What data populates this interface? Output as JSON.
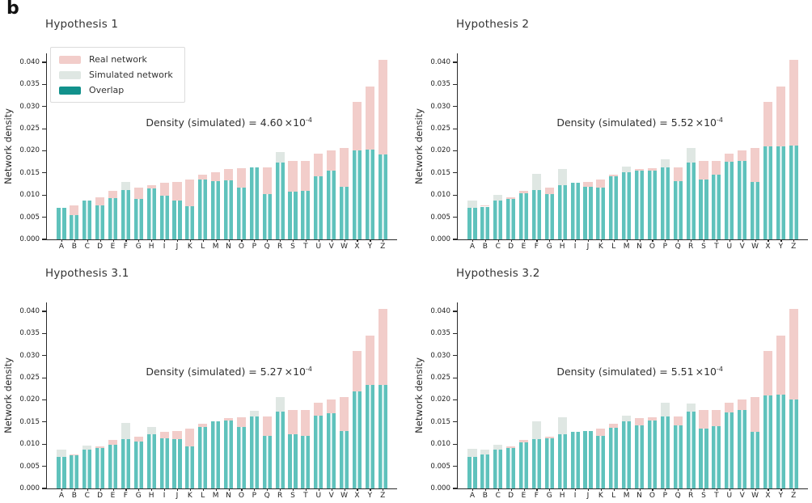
{
  "figure_label": "b",
  "colors": {
    "real": "#f2cdca",
    "simulated": "#dfe7e3",
    "overlap_bar": "#5fc2bc",
    "overlap_legend": "#12918c",
    "axis": "#2a2a2a"
  },
  "legend": {
    "items": [
      {
        "label": "Real network",
        "color": "#f2cdca"
      },
      {
        "label": "Simulated network",
        "color": "#dfe7e3"
      },
      {
        "label": "Overlap",
        "color": "#12918c"
      }
    ]
  },
  "chart_data": [
    {
      "type": "bar",
      "title": "Hypothesis 1",
      "ylabel": "Network density",
      "xlabel": "",
      "ylim": [
        0,
        0.042
      ],
      "yticks": [
        "0.000",
        "0.005",
        "0.010",
        "0.015",
        "0.020",
        "0.025",
        "0.030",
        "0.035",
        "0.040"
      ],
      "legend_position": "upper left",
      "categories": [
        "A",
        "B",
        "C",
        "D",
        "E",
        "F",
        "G",
        "H",
        "I",
        "J",
        "K",
        "L",
        "M",
        "N",
        "O",
        "P",
        "Q",
        "R",
        "S",
        "T",
        "U",
        "V",
        "W",
        "X",
        "Y",
        "Z"
      ],
      "annotation": {
        "prefix": "Density (simulated) = ",
        "mantissa": "4.60",
        "base": "×10",
        "exponent": "-4"
      },
      "series": [
        {
          "name": "Real network",
          "values": [
            0.0071,
            0.0077,
            0.0088,
            0.0095,
            0.011,
            0.0112,
            0.0117,
            0.0122,
            0.0128,
            0.013,
            0.0135,
            0.0146,
            0.0152,
            0.0158,
            0.016,
            0.0163,
            0.0163,
            0.0173,
            0.0177,
            0.0178,
            0.0194,
            0.02,
            0.0207,
            0.031,
            0.0346,
            0.0405
          ]
        },
        {
          "name": "Simulated network",
          "values": [
            0.0071,
            0.0055,
            0.0087,
            0.0076,
            0.0094,
            0.013,
            0.0092,
            0.0115,
            0.0099,
            0.0088,
            0.0075,
            0.0135,
            0.0132,
            0.0134,
            0.0117,
            0.0163,
            0.0103,
            0.0198,
            0.0107,
            0.0109,
            0.0143,
            0.0155,
            0.0119,
            0.0201,
            0.0203,
            0.0192
          ]
        },
        {
          "name": "Overlap",
          "values": [
            0.0071,
            0.0055,
            0.0087,
            0.0076,
            0.0094,
            0.0112,
            0.0092,
            0.0115,
            0.0099,
            0.0088,
            0.0075,
            0.0135,
            0.0132,
            0.0134,
            0.0117,
            0.0163,
            0.0103,
            0.0173,
            0.0107,
            0.0109,
            0.0143,
            0.0155,
            0.0119,
            0.0201,
            0.0203,
            0.0192
          ]
        }
      ]
    },
    {
      "type": "bar",
      "title": "Hypothesis 2",
      "ylabel": "Network density",
      "xlabel": "",
      "ylim": [
        0,
        0.042
      ],
      "yticks": [
        "0.000",
        "0.005",
        "0.010",
        "0.015",
        "0.020",
        "0.025",
        "0.030",
        "0.035",
        "0.040"
      ],
      "categories": [
        "A",
        "B",
        "C",
        "D",
        "E",
        "F",
        "G",
        "H",
        "I",
        "J",
        "K",
        "L",
        "M",
        "N",
        "O",
        "P",
        "Q",
        "R",
        "S",
        "T",
        "U",
        "V",
        "W",
        "X",
        "Y",
        "Z"
      ],
      "annotation": {
        "prefix": "Density (simulated) = ",
        "mantissa": "5.52",
        "base": "×10",
        "exponent": "-4"
      },
      "series": [
        {
          "name": "Real network",
          "values": [
            0.0071,
            0.0077,
            0.0088,
            0.0095,
            0.011,
            0.0112,
            0.0117,
            0.0122,
            0.0128,
            0.013,
            0.0135,
            0.0146,
            0.0152,
            0.0158,
            0.016,
            0.0163,
            0.0163,
            0.0173,
            0.0177,
            0.0178,
            0.0194,
            0.02,
            0.0207,
            0.031,
            0.0346,
            0.0405
          ]
        },
        {
          "name": "Simulated network",
          "values": [
            0.0087,
            0.0074,
            0.01,
            0.0092,
            0.0105,
            0.0148,
            0.0103,
            0.0158,
            0.0128,
            0.0119,
            0.0117,
            0.0143,
            0.0165,
            0.0155,
            0.0156,
            0.0181,
            0.0131,
            0.0206,
            0.0135,
            0.0146,
            0.0176,
            0.0177,
            0.013,
            0.021,
            0.021,
            0.0212
          ]
        },
        {
          "name": "Overlap",
          "values": [
            0.0071,
            0.0074,
            0.0088,
            0.0092,
            0.0105,
            0.0112,
            0.0103,
            0.0122,
            0.0128,
            0.0119,
            0.0117,
            0.0143,
            0.0152,
            0.0155,
            0.0156,
            0.0163,
            0.0131,
            0.0173,
            0.0135,
            0.0146,
            0.0176,
            0.0177,
            0.013,
            0.021,
            0.021,
            0.0212
          ]
        }
      ]
    },
    {
      "type": "bar",
      "title": "Hypothesis 3.1",
      "ylabel": "Network density",
      "xlabel": "",
      "ylim": [
        0,
        0.042
      ],
      "yticks": [
        "0.000",
        "0.005",
        "0.010",
        "0.015",
        "0.020",
        "0.025",
        "0.030",
        "0.035",
        "0.040"
      ],
      "categories": [
        "A",
        "B",
        "C",
        "D",
        "E",
        "F",
        "G",
        "H",
        "I",
        "J",
        "K",
        "L",
        "M",
        "N",
        "O",
        "P",
        "Q",
        "R",
        "S",
        "T",
        "U",
        "V",
        "W",
        "X",
        "Y",
        "Z"
      ],
      "annotation": {
        "prefix": "Density (simulated) = ",
        "mantissa": "5.27",
        "base": "×10",
        "exponent": "-4"
      },
      "series": [
        {
          "name": "Real network",
          "values": [
            0.0071,
            0.0077,
            0.0088,
            0.0095,
            0.011,
            0.0112,
            0.0117,
            0.0122,
            0.0128,
            0.013,
            0.0135,
            0.0146,
            0.0152,
            0.0158,
            0.016,
            0.0163,
            0.0163,
            0.0173,
            0.0177,
            0.0178,
            0.0194,
            0.02,
            0.0207,
            0.031,
            0.0346,
            0.0405
          ]
        },
        {
          "name": "Simulated network",
          "values": [
            0.0087,
            0.0075,
            0.0097,
            0.0092,
            0.0099,
            0.0148,
            0.0106,
            0.0138,
            0.0114,
            0.0112,
            0.0095,
            0.0139,
            0.0151,
            0.0153,
            0.0138,
            0.0175,
            0.0118,
            0.0207,
            0.0123,
            0.0118,
            0.0165,
            0.017,
            0.013,
            0.022,
            0.0233,
            0.0233
          ]
        },
        {
          "name": "Overlap",
          "values": [
            0.0071,
            0.0075,
            0.0088,
            0.0092,
            0.0099,
            0.0112,
            0.0106,
            0.0122,
            0.0114,
            0.0112,
            0.0095,
            0.0139,
            0.0151,
            0.0153,
            0.0138,
            0.0163,
            0.0118,
            0.0173,
            0.0123,
            0.0118,
            0.0165,
            0.017,
            0.013,
            0.022,
            0.0233,
            0.0233
          ]
        }
      ]
    },
    {
      "type": "bar",
      "title": "Hypothesis 3.2",
      "ylabel": "Network density",
      "xlabel": "",
      "ylim": [
        0,
        0.042
      ],
      "yticks": [
        "0.000",
        "0.005",
        "0.010",
        "0.015",
        "0.020",
        "0.025",
        "0.030",
        "0.035",
        "0.040"
      ],
      "categories": [
        "A",
        "B",
        "C",
        "D",
        "E",
        "F",
        "G",
        "H",
        "I",
        "J",
        "K",
        "L",
        "M",
        "N",
        "O",
        "P",
        "Q",
        "R",
        "S",
        "T",
        "U",
        "V",
        "W",
        "X",
        "Y",
        "Z"
      ],
      "annotation": {
        "prefix": "Density (simulated) = ",
        "mantissa": "5.51",
        "base": "×10",
        "exponent": "-4"
      },
      "series": [
        {
          "name": "Real network",
          "values": [
            0.0071,
            0.0077,
            0.0088,
            0.0095,
            0.011,
            0.0112,
            0.0117,
            0.0122,
            0.0128,
            0.013,
            0.0135,
            0.0146,
            0.0152,
            0.0158,
            0.016,
            0.0163,
            0.0163,
            0.0173,
            0.0177,
            0.0178,
            0.0194,
            0.02,
            0.0207,
            0.031,
            0.0346,
            0.0405
          ]
        },
        {
          "name": "Simulated network",
          "values": [
            0.0089,
            0.0087,
            0.0098,
            0.0092,
            0.0104,
            0.0151,
            0.0113,
            0.0161,
            0.0128,
            0.013,
            0.0118,
            0.0137,
            0.0165,
            0.0143,
            0.0154,
            0.0194,
            0.0142,
            0.0192,
            0.0135,
            0.0141,
            0.0172,
            0.0178,
            0.0128,
            0.021,
            0.0211,
            0.0201
          ]
        },
        {
          "name": "Overlap",
          "values": [
            0.0071,
            0.0077,
            0.0088,
            0.0092,
            0.0104,
            0.0112,
            0.0113,
            0.0122,
            0.0128,
            0.013,
            0.0118,
            0.0137,
            0.0152,
            0.0143,
            0.0154,
            0.0163,
            0.0142,
            0.0173,
            0.0135,
            0.0141,
            0.0172,
            0.0178,
            0.0128,
            0.021,
            0.0211,
            0.0201
          ]
        }
      ]
    }
  ]
}
